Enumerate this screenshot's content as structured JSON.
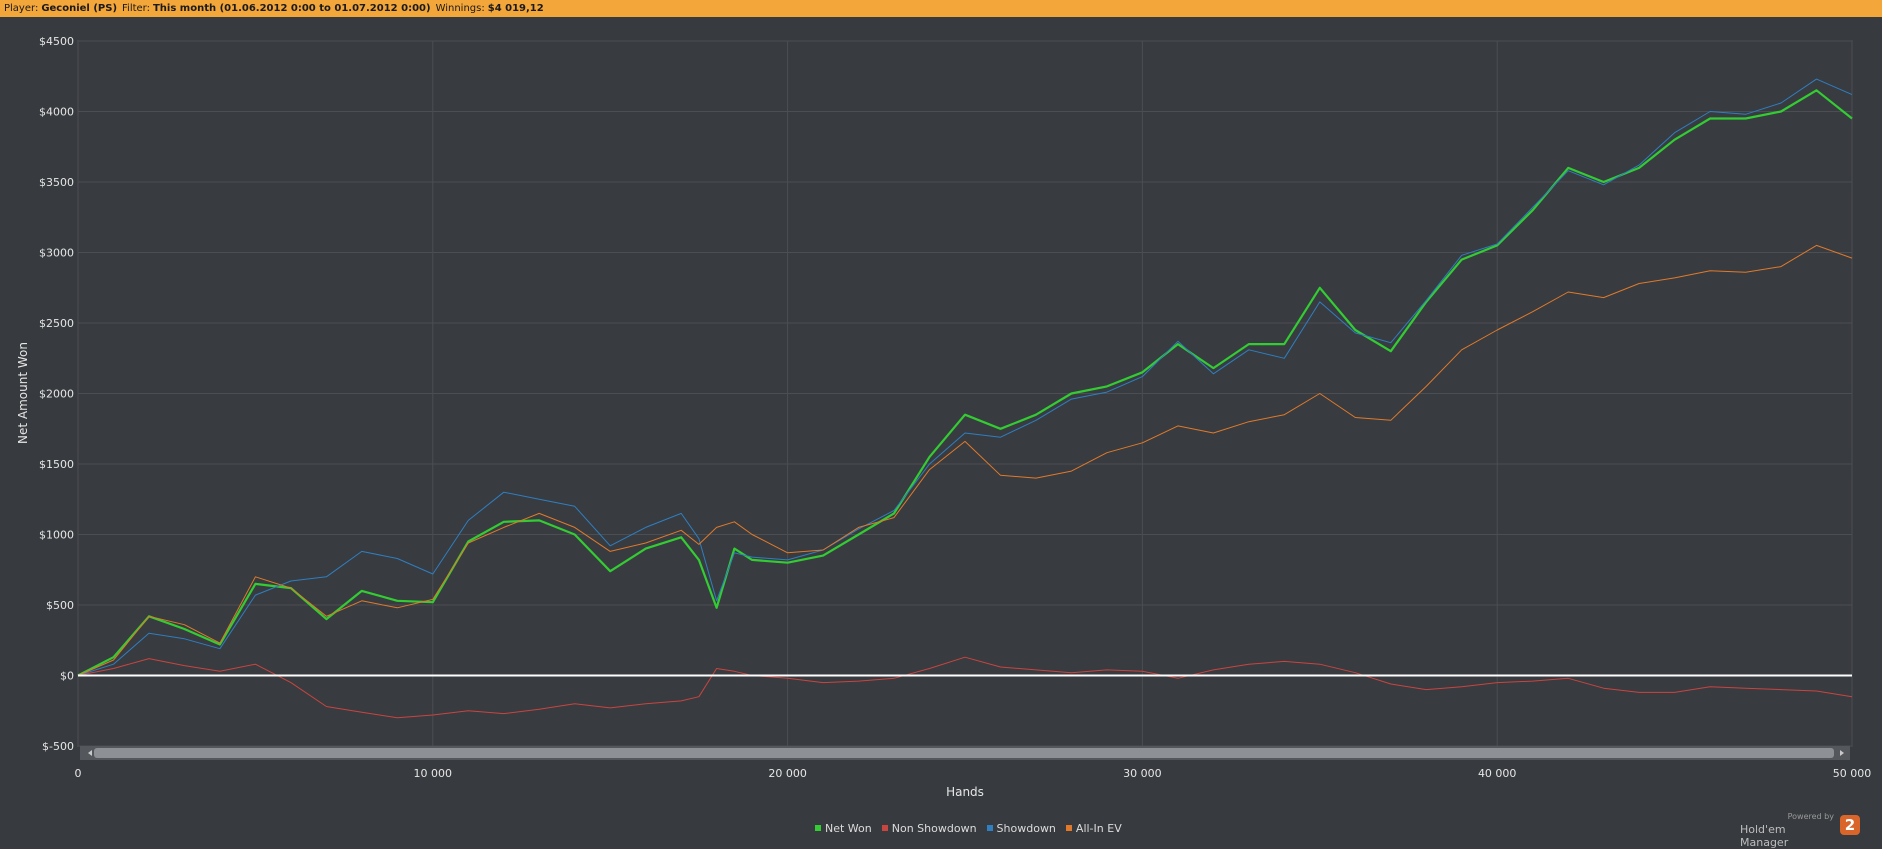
{
  "header": {
    "player_label": "Player:",
    "player_value": "Geconiel (PS)",
    "filter_label": "Filter:",
    "filter_value": "This month (01.06.2012 0:00 to 01.07.2012 0:00)",
    "winnings_label": "Winnings:",
    "winnings_value": "$4 019,12"
  },
  "chart_data": {
    "type": "line",
    "xlabel": "Hands",
    "ylabel": "Net Amount Won",
    "xlim": [
      0,
      50000
    ],
    "ylim": [
      -500,
      4500
    ],
    "x_ticks": [
      0,
      10000,
      20000,
      30000,
      40000,
      50000
    ],
    "x_tick_labels": [
      "0",
      "10 000",
      "20 000",
      "30 000",
      "40 000",
      "50 000"
    ],
    "y_ticks": [
      -500,
      0,
      500,
      1000,
      1500,
      2000,
      2500,
      3000,
      3500,
      4000,
      4500
    ],
    "y_tick_labels": [
      "$-500",
      "$0",
      "$500",
      "$1000",
      "$1500",
      "$2000",
      "$2500",
      "$3000",
      "$3500",
      "$4000",
      "$4500"
    ],
    "grid": true,
    "legend_position": "bottom-center",
    "x": [
      0,
      1000,
      2000,
      3000,
      4000,
      5000,
      6000,
      7000,
      8000,
      9000,
      10000,
      11000,
      12000,
      13000,
      14000,
      15000,
      16000,
      17000,
      17500,
      18000,
      18500,
      19000,
      20000,
      21000,
      22000,
      23000,
      24000,
      25000,
      26000,
      27000,
      28000,
      29000,
      30000,
      31000,
      32000,
      33000,
      34000,
      35000,
      36000,
      37000,
      38000,
      39000,
      40000,
      41000,
      42000,
      43000,
      44000,
      45000,
      46000,
      47000,
      48000,
      49000,
      50000
    ],
    "series": [
      {
        "name": "Net Won",
        "color": "#33cc33",
        "width": 2.2,
        "values": [
          0,
          130,
          420,
          330,
          220,
          650,
          620,
          400,
          600,
          530,
          520,
          950,
          1090,
          1100,
          1000,
          740,
          900,
          980,
          820,
          480,
          900,
          820,
          800,
          850,
          1000,
          1150,
          1550,
          1850,
          1750,
          1850,
          2000,
          2050,
          2150,
          2350,
          2180,
          2350,
          2350,
          2750,
          2450,
          2300,
          2650,
          2950,
          3050,
          3300,
          3600,
          3500,
          3600,
          3800,
          3950,
          3950,
          4000,
          4150,
          3950
        ]
      },
      {
        "name": "Non Showdown",
        "color": "#c9453f",
        "width": 1,
        "values": [
          0,
          50,
          120,
          70,
          30,
          80,
          -50,
          -220,
          -260,
          -300,
          -280,
          -250,
          -270,
          -240,
          -200,
          -230,
          -200,
          -180,
          -150,
          50,
          30,
          0,
          -20,
          -50,
          -40,
          -20,
          50,
          130,
          60,
          40,
          20,
          40,
          30,
          -20,
          40,
          80,
          100,
          80,
          20,
          -60,
          -100,
          -80,
          -50,
          -40,
          -20,
          -90,
          -120,
          -120,
          -80,
          -90,
          -100,
          -110,
          -150
        ]
      },
      {
        "name": "Showdown",
        "color": "#2f7fc1",
        "width": 1,
        "values": [
          0,
          80,
          300,
          260,
          190,
          570,
          670,
          700,
          880,
          830,
          720,
          1100,
          1300,
          1250,
          1200,
          920,
          1050,
          1150,
          970,
          530,
          870,
          840,
          820,
          890,
          1040,
          1170,
          1500,
          1720,
          1690,
          1810,
          1960,
          2010,
          2120,
          2370,
          2140,
          2310,
          2250,
          2650,
          2430,
          2360,
          2660,
          2980,
          3060,
          3320,
          3580,
          3480,
          3620,
          3850,
          4000,
          3980,
          4060,
          4230,
          4120
        ]
      },
      {
        "name": "All-In EV",
        "color": "#e07a2a",
        "width": 1,
        "values": [
          0,
          110,
          420,
          360,
          230,
          700,
          620,
          420,
          530,
          480,
          540,
          940,
          1050,
          1150,
          1050,
          880,
          940,
          1030,
          930,
          1050,
          1090,
          1000,
          870,
          890,
          1050,
          1120,
          1460,
          1660,
          1420,
          1400,
          1450,
          1580,
          1650,
          1770,
          1720,
          1800,
          1850,
          2000,
          1830,
          1810,
          2050,
          2310,
          2450,
          2580,
          2720,
          2680,
          2780,
          2820,
          2870,
          2860,
          2900,
          3050,
          2960
        ]
      }
    ]
  }
}
